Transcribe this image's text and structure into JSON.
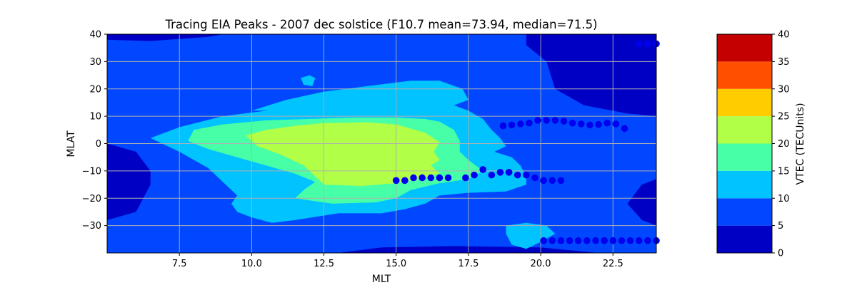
{
  "chart_data": {
    "type": "contour",
    "title": "Tracing EIA Peaks - 2007 dec solstice (F10.7 mean=73.94, median=71.5)",
    "xlabel": "MLT",
    "ylabel": "MLAT",
    "xlim": [
      5,
      24
    ],
    "ylim": [
      -40,
      40
    ],
    "x_ticks": [
      7.5,
      10.0,
      12.5,
      15.0,
      17.5,
      20.0,
      22.5
    ],
    "x_tick_labels": [
      "7.5",
      "10.0",
      "12.5",
      "15.0",
      "17.5",
      "20.0",
      "22.5"
    ],
    "y_ticks": [
      -30,
      -20,
      -10,
      0,
      10,
      20,
      30,
      40
    ],
    "y_tick_labels": [
      "−30",
      "−20",
      "−10",
      "0",
      "10",
      "20",
      "30",
      "40"
    ],
    "grid": true,
    "colorbar": {
      "label": "VTEC (TECUnits)",
      "levels": [
        0,
        5,
        10,
        15,
        20,
        25,
        30,
        35,
        40
      ],
      "level_labels": [
        "0",
        "5",
        "10",
        "15",
        "20",
        "25",
        "30",
        "35",
        "40"
      ],
      "colors": [
        "#0000c4",
        "#0047ff",
        "#00c3ff",
        "#47ffa6",
        "#b2ff47",
        "#ffcc00",
        "#ff5000",
        "#c40000"
      ]
    },
    "contours": [
      {
        "level": "0-5",
        "color": "#0000c4",
        "regions": [
          {
            "name": "top-left",
            "points": [
              [
                5,
                40
              ],
              [
                9,
                40
              ],
              [
                8.5,
                39
              ],
              [
                6.5,
                37.5
              ],
              [
                5,
                38
              ]
            ]
          },
          {
            "name": "left-edge",
            "points": [
              [
                5,
                0
              ],
              [
                6,
                -3
              ],
              [
                6.5,
                -10
              ],
              [
                6.5,
                -15
              ],
              [
                6,
                -25
              ],
              [
                5,
                -28
              ]
            ]
          },
          {
            "name": "top-right",
            "points": [
              [
                19.5,
                40
              ],
              [
                24,
                40
              ],
              [
                24,
                10
              ],
              [
                23,
                11
              ],
              [
                21.5,
                14
              ],
              [
                20.5,
                20
              ],
              [
                20.2,
                30
              ],
              [
                19.5,
                36
              ]
            ]
          },
          {
            "name": "right-lower",
            "points": [
              [
                24,
                -13
              ],
              [
                23.5,
                -15
              ],
              [
                23,
                -22
              ],
              [
                23.5,
                -28
              ],
              [
                24,
                -30
              ]
            ]
          },
          {
            "name": "bottom",
            "points": [
              [
                13,
                -40
              ],
              [
                22,
                -40
              ],
              [
                20,
                -38
              ],
              [
                17,
                -37.5
              ],
              [
                14.5,
                -38
              ]
            ]
          }
        ]
      },
      {
        "level": "10-15",
        "color": "#00c3ff",
        "regions": [
          {
            "name": "main-body",
            "points": [
              [
                6.5,
                2
              ],
              [
                7.5,
                6
              ],
              [
                9,
                10
              ],
              [
                10.5,
                12
              ],
              [
                12,
                14
              ],
              [
                13.5,
                15.5
              ],
              [
                15,
                16
              ],
              [
                16,
                16.5
              ],
              [
                16.5,
                15
              ],
              [
                17,
                14
              ],
              [
                17.5,
                12
              ],
              [
                18,
                9
              ],
              [
                18.3,
                5
              ],
              [
                18.6,
                2
              ],
              [
                18.8,
                -1
              ],
              [
                18.4,
                -3
              ],
              [
                19,
                -5
              ],
              [
                19.3,
                -8
              ],
              [
                19.5,
                -12
              ],
              [
                19.5,
                -15
              ],
              [
                18.8,
                -17.5
              ],
              [
                17.5,
                -18
              ],
              [
                16.5,
                -19
              ],
              [
                16,
                -22
              ],
              [
                15.3,
                -24
              ],
              [
                14.5,
                -25.5
              ],
              [
                13,
                -25.5
              ],
              [
                11.5,
                -28
              ],
              [
                10.7,
                -29
              ],
              [
                10,
                -27
              ],
              [
                9.5,
                -25
              ],
              [
                9.3,
                -22
              ],
              [
                9.5,
                -19
              ],
              [
                9,
                -14
              ],
              [
                8.5,
                -9
              ],
              [
                8,
                -6
              ],
              [
                7.5,
                -3
              ]
            ]
          },
          {
            "name": "upper-lobe",
            "points": [
              [
                10,
                12
              ],
              [
                11.2,
                16
              ],
              [
                12.5,
                19
              ],
              [
                14,
                21
              ],
              [
                15.5,
                23
              ],
              [
                16.5,
                23
              ],
              [
                17.3,
                20
              ],
              [
                17.5,
                16
              ],
              [
                17,
                14
              ],
              [
                16,
                13.5
              ],
              [
                14,
                12.5
              ]
            ]
          },
          {
            "name": "small-top",
            "points": [
              [
                11.7,
                24
              ],
              [
                12,
                25
              ],
              [
                12.2,
                24
              ],
              [
                12.1,
                21
              ],
              [
                11.8,
                21.5
              ]
            ]
          },
          {
            "name": "lower-right-blob",
            "points": [
              [
                18.8,
                -30
              ],
              [
                19.5,
                -29
              ],
              [
                20.2,
                -30
              ],
              [
                20.5,
                -33
              ],
              [
                20,
                -36
              ],
              [
                19.5,
                -38.5
              ],
              [
                19,
                -37
              ],
              [
                18.8,
                -33
              ]
            ]
          }
        ]
      },
      {
        "level": "15-20",
        "color": "#47ffa6",
        "regions": [
          {
            "name": "ring",
            "points": [
              [
                8,
                5
              ],
              [
                9,
                7
              ],
              [
                10.5,
                8.5
              ],
              [
                12,
                9
              ],
              [
                13.5,
                9.5
              ],
              [
                15,
                9.5
              ],
              [
                16,
                9
              ],
              [
                16.5,
                8
              ],
              [
                17,
                5
              ],
              [
                17.2,
                1
              ],
              [
                17.2,
                -3
              ],
              [
                17.5,
                -6
              ],
              [
                18,
                -10
              ],
              [
                17.5,
                -13
              ],
              [
                16.5,
                -14.5
              ],
              [
                15.5,
                -17
              ],
              [
                15,
                -20
              ],
              [
                14.3,
                -21.5
              ],
              [
                12.8,
                -22
              ],
              [
                11.5,
                -20
              ],
              [
                11.8,
                -17
              ],
              [
                12.2,
                -14
              ],
              [
                11.5,
                -11
              ],
              [
                10.5,
                -8
              ],
              [
                9.5,
                -5
              ],
              [
                8.5,
                -2
              ],
              [
                7.8,
                1
              ]
            ]
          }
        ]
      },
      {
        "level": "20-25",
        "color": "#b2ff47",
        "regions": [
          {
            "name": "core",
            "points": [
              [
                9.8,
                3
              ],
              [
                10.5,
                5
              ],
              [
                11.5,
                6.5
              ],
              [
                12.5,
                7.5
              ],
              [
                14,
                7.8
              ],
              [
                15,
                7
              ],
              [
                16,
                4
              ],
              [
                16.5,
                0.5
              ],
              [
                16.3,
                -3
              ],
              [
                16.5,
                -6
              ],
              [
                16.2,
                -8
              ],
              [
                16.5,
                -11
              ],
              [
                15.8,
                -13
              ],
              [
                15,
                -14.5
              ],
              [
                13.8,
                -15.5
              ],
              [
                12.5,
                -15
              ],
              [
                12.2,
                -12
              ],
              [
                11.8,
                -8
              ],
              [
                11,
                -4
              ],
              [
                10.2,
                -1
              ]
            ]
          }
        ]
      }
    ],
    "series": [
      {
        "name": "north",
        "color": "#0000ee",
        "points": [
          [
            18.7,
            6.5
          ],
          [
            19.0,
            6.8
          ],
          [
            19.3,
            7.2
          ],
          [
            19.6,
            7.5
          ],
          [
            19.9,
            8.5
          ],
          [
            20.2,
            8.5
          ],
          [
            20.5,
            8.5
          ],
          [
            20.8,
            8.2
          ],
          [
            21.1,
            7.5
          ],
          [
            21.4,
            7.2
          ],
          [
            21.7,
            6.8
          ],
          [
            22.0,
            7.0
          ],
          [
            22.3,
            7.5
          ],
          [
            22.6,
            7.2
          ],
          [
            22.9,
            5.5
          ]
        ]
      },
      {
        "name": "south",
        "color": "#0000ee",
        "points": [
          [
            15.0,
            -13.5
          ],
          [
            15.3,
            -13.5
          ],
          [
            15.6,
            -12.5
          ],
          [
            15.9,
            -12.5
          ],
          [
            16.2,
            -12.5
          ],
          [
            16.5,
            -12.5
          ],
          [
            16.8,
            -12.5
          ],
          [
            17.4,
            -12.5
          ],
          [
            17.7,
            -11.5
          ],
          [
            18.0,
            -9.5
          ],
          [
            18.3,
            -11.5
          ],
          [
            18.6,
            -10.5
          ],
          [
            18.9,
            -10.5
          ],
          [
            19.2,
            -11.5
          ],
          [
            19.5,
            -11.5
          ],
          [
            19.8,
            -12.5
          ],
          [
            20.1,
            -13.5
          ],
          [
            20.4,
            -13.5
          ],
          [
            20.7,
            -13.5
          ]
        ]
      },
      {
        "name": "lower-edge",
        "color": "#0000ee",
        "points": [
          [
            20.1,
            -35.5
          ],
          [
            20.4,
            -35.5
          ],
          [
            20.7,
            -35.5
          ],
          [
            21.0,
            -35.5
          ],
          [
            21.3,
            -35.5
          ],
          [
            21.6,
            -35.5
          ],
          [
            21.9,
            -35.5
          ],
          [
            22.2,
            -35.5
          ],
          [
            22.5,
            -35.5
          ],
          [
            22.8,
            -35.5
          ],
          [
            23.1,
            -35.5
          ],
          [
            23.4,
            -35.5
          ],
          [
            23.7,
            -35.5
          ],
          [
            24.0,
            -35.5
          ]
        ]
      },
      {
        "name": "upper-edge",
        "color": "#0000ee",
        "points": [
          [
            23.4,
            36.5
          ],
          [
            23.7,
            36.5
          ],
          [
            24.0,
            36.5
          ]
        ]
      }
    ]
  }
}
